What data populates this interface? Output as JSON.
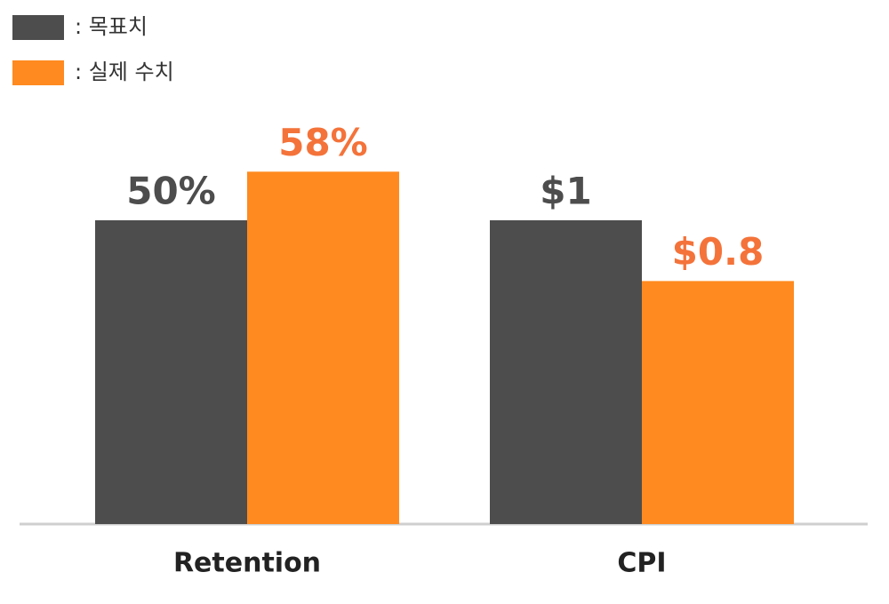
{
  "chart_data": {
    "type": "bar",
    "categories": [
      "Retention",
      "CPI"
    ],
    "series": [
      {
        "name": ": 목표치",
        "color": "#4d4d4d",
        "label_color": "#4d4d4d",
        "values": [
          50,
          1
        ],
        "value_labels": [
          "50%",
          "$1"
        ]
      },
      {
        "name": ": 실제 수치",
        "color": "#ff8a1f",
        "label_color": "#f4733a",
        "values": [
          58,
          0.8
        ],
        "value_labels": [
          "58%",
          "$0.8"
        ]
      }
    ],
    "legend": "top-left"
  }
}
